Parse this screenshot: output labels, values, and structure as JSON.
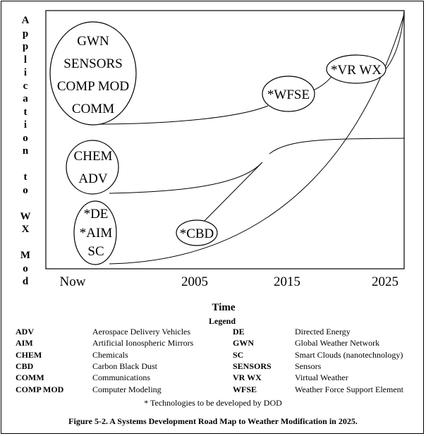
{
  "y_axis_label": "Application to WX Mod",
  "x_axis_label": "Time",
  "x_ticks": [
    "Now",
    "2005",
    "2015",
    "2025"
  ],
  "nodes": {
    "top_group": [
      "GWN",
      "SENSORS",
      "COMP MOD",
      "COMM"
    ],
    "middle_group": [
      "CHEM",
      "ADV"
    ],
    "bottom_group": [
      "*DE",
      "*AIM",
      "SC"
    ],
    "cbd": "*CBD",
    "wfse": "*WFSE",
    "vrwx": "*VR WX"
  },
  "legend": {
    "title": "Legend",
    "left": [
      {
        "abbr": "ADV",
        "desc": "Aerospace Delivery Vehicles"
      },
      {
        "abbr": "AIM",
        "desc": "Artificial Ionospheric Mirrors"
      },
      {
        "abbr": "CHEM",
        "desc": "Chemicals"
      },
      {
        "abbr": "CBD",
        "desc": "Carbon Black Dust"
      },
      {
        "abbr": "COMM",
        "desc": "Communications"
      },
      {
        "abbr": "COMP MOD",
        "desc": "Computer Modeling"
      }
    ],
    "right": [
      {
        "abbr": "DE",
        "desc": "Directed Energy"
      },
      {
        "abbr": "GWN",
        "desc": "Global Weather Network"
      },
      {
        "abbr": "SC",
        "desc": "Smart Clouds (nanotechnology)"
      },
      {
        "abbr": "SENSORS",
        "desc": "Sensors"
      },
      {
        "abbr": "VR WX",
        "desc": "Virtual Weather"
      },
      {
        "abbr": "WFSE",
        "desc": "Weather Force Support Element"
      }
    ]
  },
  "footnote": "*  Technologies to be developed by DOD",
  "caption": "Figure 5-2.  A Systems Development Road Map to Weather Modification in 2025."
}
